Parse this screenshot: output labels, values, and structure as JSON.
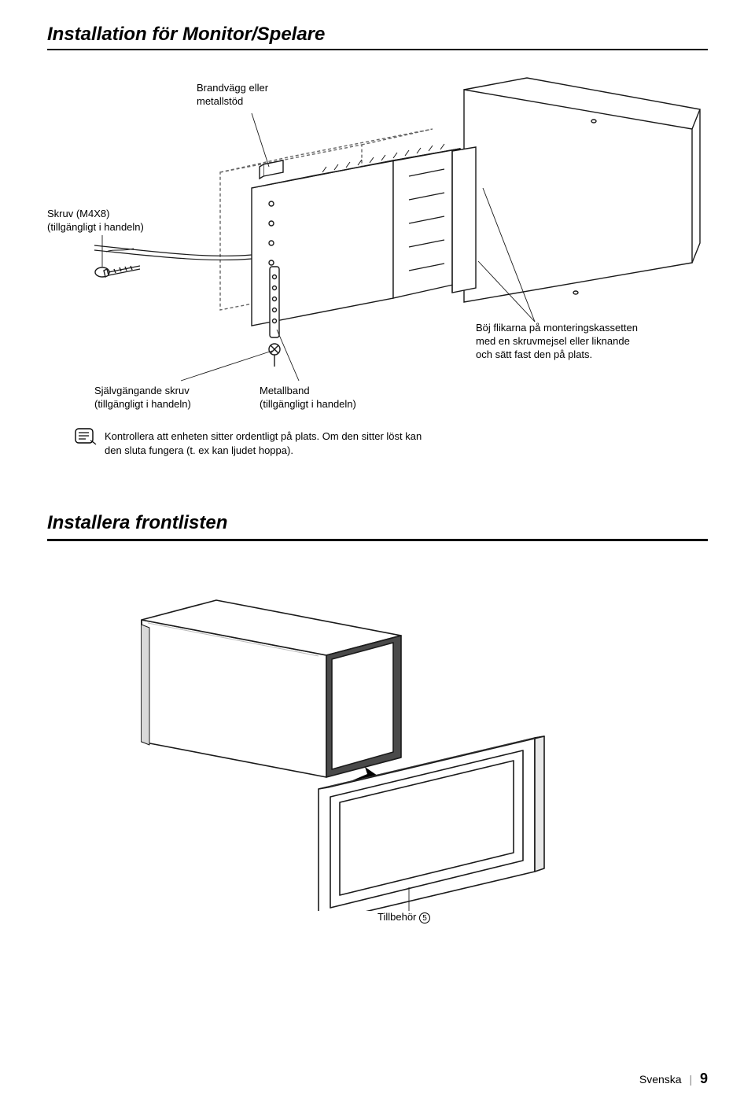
{
  "title": "Installation för Monitor/Spelare",
  "diagram1": {
    "callouts": {
      "firewall": "Brandvägg eller\nmetallstöd",
      "screw_m4x8": "Skruv (M4X8)\n(tillgängligt i handeln)",
      "selftap": "Självgängande skruv\n(tillgängligt i handeln)",
      "metalband": "Metallband\n(tillgängligt i handeln)",
      "bend_tabs": "Böj flikarna på monteringskassetten\nmed en skruvmejsel eller liknande\noch sätt fast den på plats."
    },
    "note": "Kontrollera att enheten sitter ordentligt på plats. Om den sitter löst kan\nden sluta fungera (t. ex kan ljudet hoppa)."
  },
  "section2": {
    "title": "Installera frontlisten",
    "accessory_label": "Tillbehör",
    "accessory_num": "5"
  },
  "footer": {
    "lang": "Svenska",
    "page": "9"
  },
  "colors": {
    "text": "#000000",
    "bg": "#ffffff",
    "rule": "#000000",
    "line": "#1a1a1a",
    "dash": "#666666",
    "shadow": "#4a4a4a",
    "light": "#f5f5f5"
  }
}
